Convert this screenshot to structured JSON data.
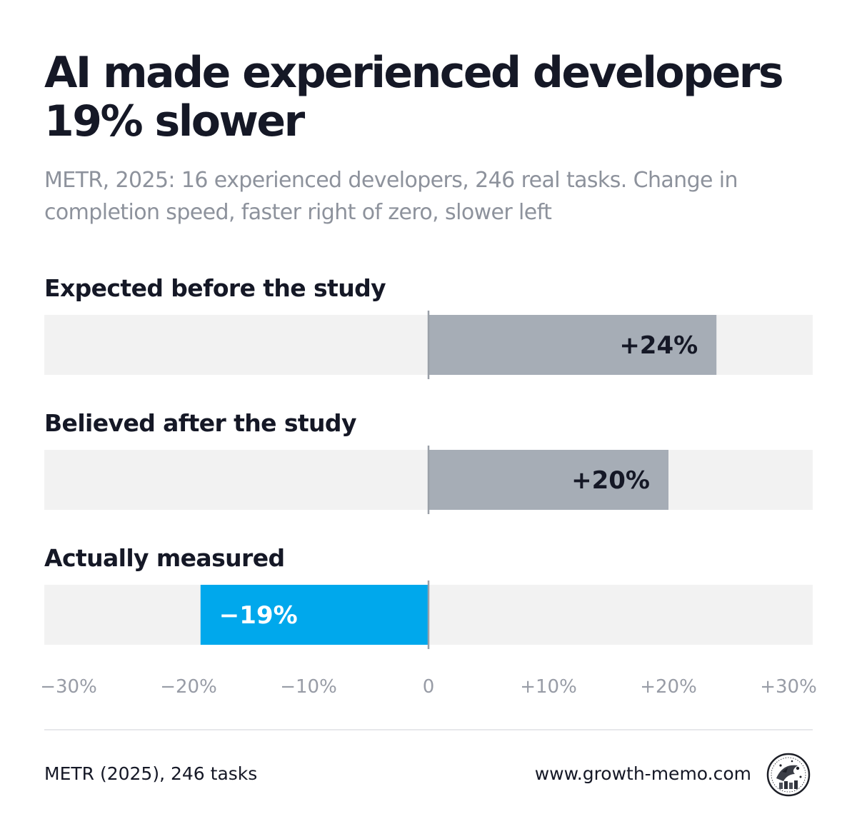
{
  "header": {
    "title_line1": "AI made experienced developers",
    "title_line2": "19% slower",
    "subtitle_line1": "METR, 2025: 16 experienced developers, 246 real tasks. Change in",
    "subtitle_line2": "completion speed, faster right of zero, slower left"
  },
  "chart_data": {
    "type": "bar",
    "orientation": "horizontal",
    "categories": [
      "Expected before the study",
      "Believed after the study",
      "Actually measured"
    ],
    "values": [
      24,
      20,
      -19
    ],
    "value_labels": [
      "+24%",
      "+20%",
      "−19%"
    ],
    "colors": [
      "#a6adb6",
      "#a6adb6",
      "#00a8ec"
    ],
    "label_colors": [
      "#151826",
      "#151826",
      "#ffffff"
    ],
    "xlim": [
      -32,
      32
    ],
    "xticks": [
      -30,
      -20,
      -10,
      0,
      10,
      20,
      30
    ],
    "xtick_labels": [
      "−30%",
      "−20%",
      "−10%",
      "0",
      "+10%",
      "+20%",
      "+30%"
    ],
    "track_color": "#f2f2f2",
    "zero_line_color": "#9aa0a8",
    "grid": false,
    "legend": "none"
  },
  "footer": {
    "source": "METR (2025), 246 tasks",
    "website": "www.growth-memo.com"
  },
  "logo": {
    "icon": "growth-memo-seal-logo"
  }
}
